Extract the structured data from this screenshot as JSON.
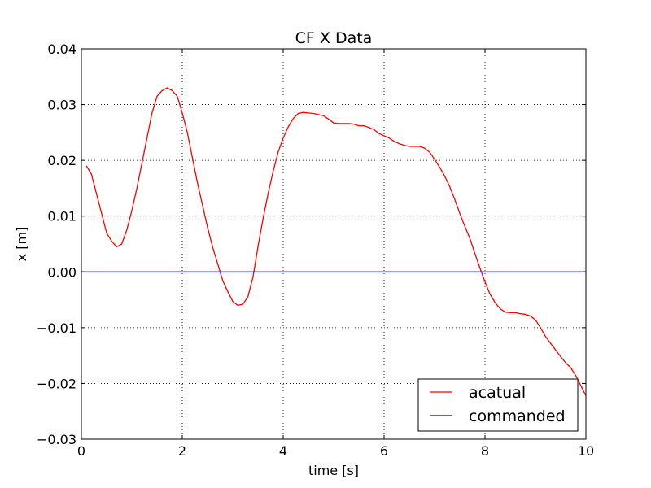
{
  "chart_data": {
    "type": "line",
    "title": "CF X Data",
    "xlabel": "time [s]",
    "ylabel": "x [m]",
    "xlim": [
      0,
      10
    ],
    "ylim": [
      -0.03,
      0.04
    ],
    "xticks": [
      0,
      2,
      4,
      6,
      8,
      10
    ],
    "xtick_labels": [
      "0",
      "2",
      "4",
      "6",
      "8",
      "10"
    ],
    "yticks": [
      -0.03,
      -0.02,
      -0.01,
      0.0,
      0.01,
      0.02,
      0.03,
      0.04
    ],
    "ytick_labels": [
      "−0.03",
      "−0.02",
      "−0.01",
      "0.00",
      "0.01",
      "0.02",
      "0.03",
      "0.04"
    ],
    "grid": true,
    "legend_position": "bottom-right",
    "series": [
      {
        "name": "acatual",
        "color": "#ff0000",
        "x": [
          0.1,
          0.2,
          0.3,
          0.4,
          0.5,
          0.6,
          0.7,
          0.8,
          0.9,
          1.0,
          1.1,
          1.2,
          1.3,
          1.4,
          1.5,
          1.6,
          1.7,
          1.8,
          1.9,
          2.0,
          2.1,
          2.2,
          2.3,
          2.4,
          2.5,
          2.6,
          2.7,
          2.8,
          2.9,
          3.0,
          3.1,
          3.2,
          3.3,
          3.4,
          3.5,
          3.6,
          3.7,
          3.8,
          3.9,
          4.0,
          4.1,
          4.2,
          4.3,
          4.4,
          4.5,
          4.6,
          4.7,
          4.8,
          4.9,
          5.0,
          5.1,
          5.2,
          5.3,
          5.4,
          5.5,
          5.6,
          5.7,
          5.8,
          5.9,
          6.0,
          6.1,
          6.2,
          6.3,
          6.4,
          6.5,
          6.6,
          6.7,
          6.8,
          6.9,
          7.0,
          7.1,
          7.2,
          7.3,
          7.4,
          7.5,
          7.6,
          7.7,
          7.8,
          7.9,
          8.0,
          8.1,
          8.2,
          8.3,
          8.4,
          8.5,
          8.6,
          8.7,
          8.8,
          8.9,
          9.0,
          9.1,
          9.2,
          9.3,
          9.4,
          9.5,
          9.6,
          9.7,
          9.8,
          9.9,
          10.0
        ],
        "y": [
          0.019,
          0.0175,
          0.014,
          0.0105,
          0.007,
          0.0055,
          0.0045,
          0.005,
          0.0075,
          0.011,
          0.015,
          0.0195,
          0.024,
          0.0285,
          0.0315,
          0.0325,
          0.033,
          0.0325,
          0.0315,
          0.0285,
          0.025,
          0.0205,
          0.016,
          0.012,
          0.008,
          0.0045,
          0.0015,
          -0.0015,
          -0.0035,
          -0.0053,
          -0.006,
          -0.0058,
          -0.0045,
          -0.001,
          0.0045,
          0.0095,
          0.014,
          0.018,
          0.0215,
          0.024,
          0.026,
          0.0275,
          0.0284,
          0.0286,
          0.0285,
          0.0284,
          0.0282,
          0.028,
          0.0274,
          0.0267,
          0.0266,
          0.0266,
          0.0266,
          0.0265,
          0.0262,
          0.0262,
          0.0259,
          0.0255,
          0.0248,
          0.0244,
          0.024,
          0.0234,
          0.023,
          0.0227,
          0.0225,
          0.0225,
          0.0225,
          0.0222,
          0.0215,
          0.0202,
          0.0188,
          0.0172,
          0.0153,
          0.013,
          0.0105,
          0.0082,
          0.006,
          0.0033,
          0.0007,
          -0.0018,
          -0.004,
          -0.0055,
          -0.0066,
          -0.0072,
          -0.0073,
          -0.0073,
          -0.0075,
          -0.0076,
          -0.0079,
          -0.0086,
          -0.01,
          -0.0116,
          -0.0128,
          -0.014,
          -0.0152,
          -0.0163,
          -0.0172,
          -0.0186,
          -0.0204,
          -0.0222
        ]
      },
      {
        "name": "commanded",
        "color": "#0000ff",
        "x": [
          0,
          10
        ],
        "y": [
          0,
          0
        ]
      }
    ]
  }
}
